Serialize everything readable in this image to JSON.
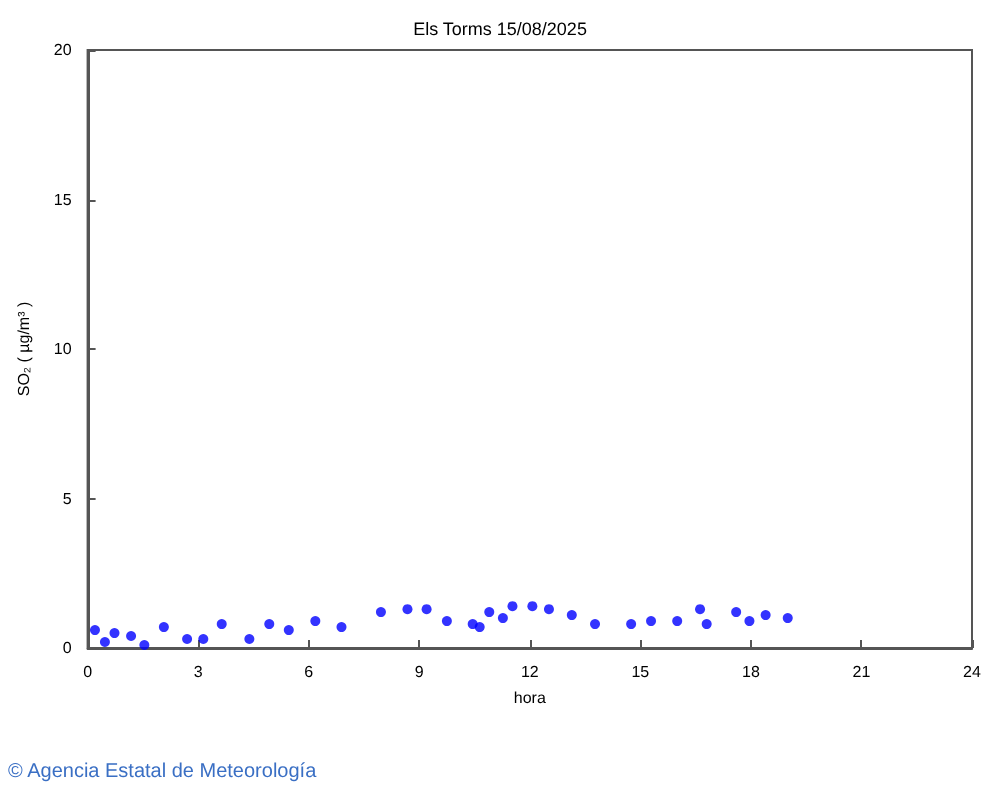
{
  "chart_data": {
    "type": "scatter",
    "title": "Els Torms 15/08/2025",
    "xlabel": "hora",
    "ylabel": "SO₂ ( µg/m³ )",
    "annotations": [
      "© Agencia Estatal de Meteorología"
    ],
    "series": [
      {
        "color": "#0000ff",
        "x": [
          0.2,
          0.47,
          0.73,
          1.18,
          1.54,
          2.07,
          2.7,
          3.14,
          3.64,
          4.39,
          4.93,
          5.46,
          6.18,
          6.89,
          7.96,
          8.68,
          9.2,
          9.75,
          10.45,
          10.64,
          10.9,
          11.27,
          11.53,
          12.07,
          12.52,
          13.14,
          13.77,
          14.75,
          15.29,
          16.0,
          16.62,
          16.8,
          17.6,
          17.96,
          18.4,
          19.0
        ],
        "values": [
          0.6,
          0.2,
          0.5,
          0.4,
          0.1,
          0.7,
          0.3,
          0.3,
          0.8,
          0.3,
          0.8,
          0.6,
          0.9,
          0.7,
          1.2,
          1.3,
          1.3,
          0.9,
          0.8,
          0.7,
          1.2,
          1.0,
          1.4,
          1.4,
          1.3,
          1.1,
          0.8,
          0.8,
          0.9,
          0.9,
          1.3,
          0.8,
          1.2,
          0.9,
          1.1,
          1.0
        ]
      }
    ],
    "xlim": [
      0,
      24
    ],
    "xticks": [
      0,
      3,
      6,
      9,
      12,
      15,
      18,
      21,
      24
    ],
    "ylim": [
      0,
      20
    ],
    "yticks": [
      0,
      5,
      10,
      15,
      20
    ],
    "marker": "circle"
  }
}
